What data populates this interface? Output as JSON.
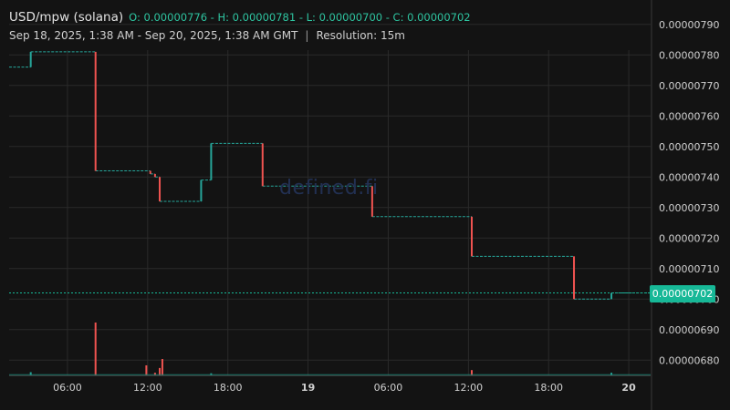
{
  "header": {
    "symbol": "USD/mpw (solana)",
    "ohlc_text": "O: 0.00000776 - H: 0.00000781 - L: 0.00000700 - C: 0.00000702",
    "range": "Sep 18, 2025, 1:38 AM - Sep 20, 2025, 1:38 AM GMT",
    "separator": "|",
    "resolution": "Resolution: 15m"
  },
  "watermark": "defined.fi",
  "last_price_label": "0.00000702",
  "colors": {
    "background": "#131313",
    "grid": "#2a2a2a",
    "up": "#26a69a",
    "down": "#ef5350",
    "last_price": "#17b897"
  },
  "chart_data": {
    "type": "candlestick",
    "resolution": "15m",
    "ylim": [
      6.75e-06,
      7.95e-06
    ],
    "y_ticks": [
      6.8e-06,
      6.9e-06,
      7e-06,
      7.1e-06,
      7.2e-06,
      7.3e-06,
      7.4e-06,
      7.5e-06,
      7.6e-06,
      7.7e-06,
      7.8e-06,
      7.9e-06
    ],
    "y_tick_labels": [
      "0.00000680",
      "0.00000690",
      "0.00000700",
      "0.00000710",
      "0.00000720",
      "0.00000730",
      "0.00000740",
      "0.00000750",
      "0.00000760",
      "0.00000770",
      "0.00000780",
      "0.00000790"
    ],
    "x_range_hours": [
      1.633,
      49.633
    ],
    "x_ticks": [
      {
        "h": 6,
        "label": "06:00",
        "bold": false
      },
      {
        "h": 12,
        "label": "12:00",
        "bold": false
      },
      {
        "h": 18,
        "label": "18:00",
        "bold": false
      },
      {
        "h": 24,
        "label": "19",
        "bold": true
      },
      {
        "h": 30,
        "label": "06:00",
        "bold": false
      },
      {
        "h": 36,
        "label": "12:00",
        "bold": false
      },
      {
        "h": 42,
        "label": "18:00",
        "bold": false
      },
      {
        "h": 48,
        "label": "20",
        "bold": true
      }
    ],
    "segments": [
      {
        "h0": 1.633,
        "h1": 3.25,
        "price": 7.76e-06
      },
      {
        "h0": 3.25,
        "h1": 8.1,
        "price": 7.81e-06
      },
      {
        "h0": 8.1,
        "h1": 12.2,
        "price": 7.42e-06
      },
      {
        "h0": 12.2,
        "h1": 12.55,
        "price": 7.41e-06
      },
      {
        "h0": 12.55,
        "h1": 12.9,
        "price": 7.4e-06
      },
      {
        "h0": 12.9,
        "h1": 16.0,
        "price": 7.32e-06
      },
      {
        "h0": 16.0,
        "h1": 16.75,
        "price": 7.39e-06
      },
      {
        "h0": 16.75,
        "h1": 20.6,
        "price": 7.51e-06
      },
      {
        "h0": 20.6,
        "h1": 28.8,
        "price": 7.37e-06
      },
      {
        "h0": 28.8,
        "h1": 36.25,
        "price": 7.27e-06
      },
      {
        "h0": 36.25,
        "h1": 43.9,
        "price": 7.14e-06
      },
      {
        "h0": 43.9,
        "h1": 46.7,
        "price": 7e-06
      },
      {
        "h0": 46.7,
        "h1": 49.633,
        "price": 7.02e-06
      }
    ],
    "candles": [
      {
        "h": 3.25,
        "open": 7.76e-06,
        "close": 7.81e-06
      },
      {
        "h": 8.1,
        "open": 7.81e-06,
        "close": 7.42e-06
      },
      {
        "h": 12.2,
        "open": 7.42e-06,
        "close": 7.41e-06
      },
      {
        "h": 12.55,
        "open": 7.41e-06,
        "close": 7.4e-06
      },
      {
        "h": 12.9,
        "open": 7.4e-06,
        "close": 7.32e-06
      },
      {
        "h": 16.0,
        "open": 7.32e-06,
        "close": 7.39e-06
      },
      {
        "h": 16.75,
        "open": 7.39e-06,
        "close": 7.51e-06
      },
      {
        "h": 20.6,
        "open": 7.51e-06,
        "close": 7.37e-06
      },
      {
        "h": 28.8,
        "open": 7.37e-06,
        "close": 7.27e-06
      },
      {
        "h": 36.25,
        "open": 7.27e-06,
        "close": 7.14e-06
      },
      {
        "h": 43.9,
        "open": 7.14e-06,
        "close": 7e-06
      },
      {
        "h": 46.7,
        "open": 7e-06,
        "close": 7.02e-06
      }
    ],
    "volume": [
      {
        "h": 3.25,
        "v": 0.06,
        "up": true
      },
      {
        "h": 8.1,
        "v": 1.0,
        "up": false
      },
      {
        "h": 11.9,
        "v": 0.19,
        "up": false
      },
      {
        "h": 12.55,
        "v": 0.05,
        "up": false
      },
      {
        "h": 12.9,
        "v": 0.14,
        "up": false
      },
      {
        "h": 13.1,
        "v": 0.31,
        "up": false
      },
      {
        "h": 16.75,
        "v": 0.04,
        "up": true
      },
      {
        "h": 36.25,
        "v": 0.1,
        "up": false
      },
      {
        "h": 46.7,
        "v": 0.05,
        "up": true
      }
    ],
    "last_price": 7.02e-06
  }
}
